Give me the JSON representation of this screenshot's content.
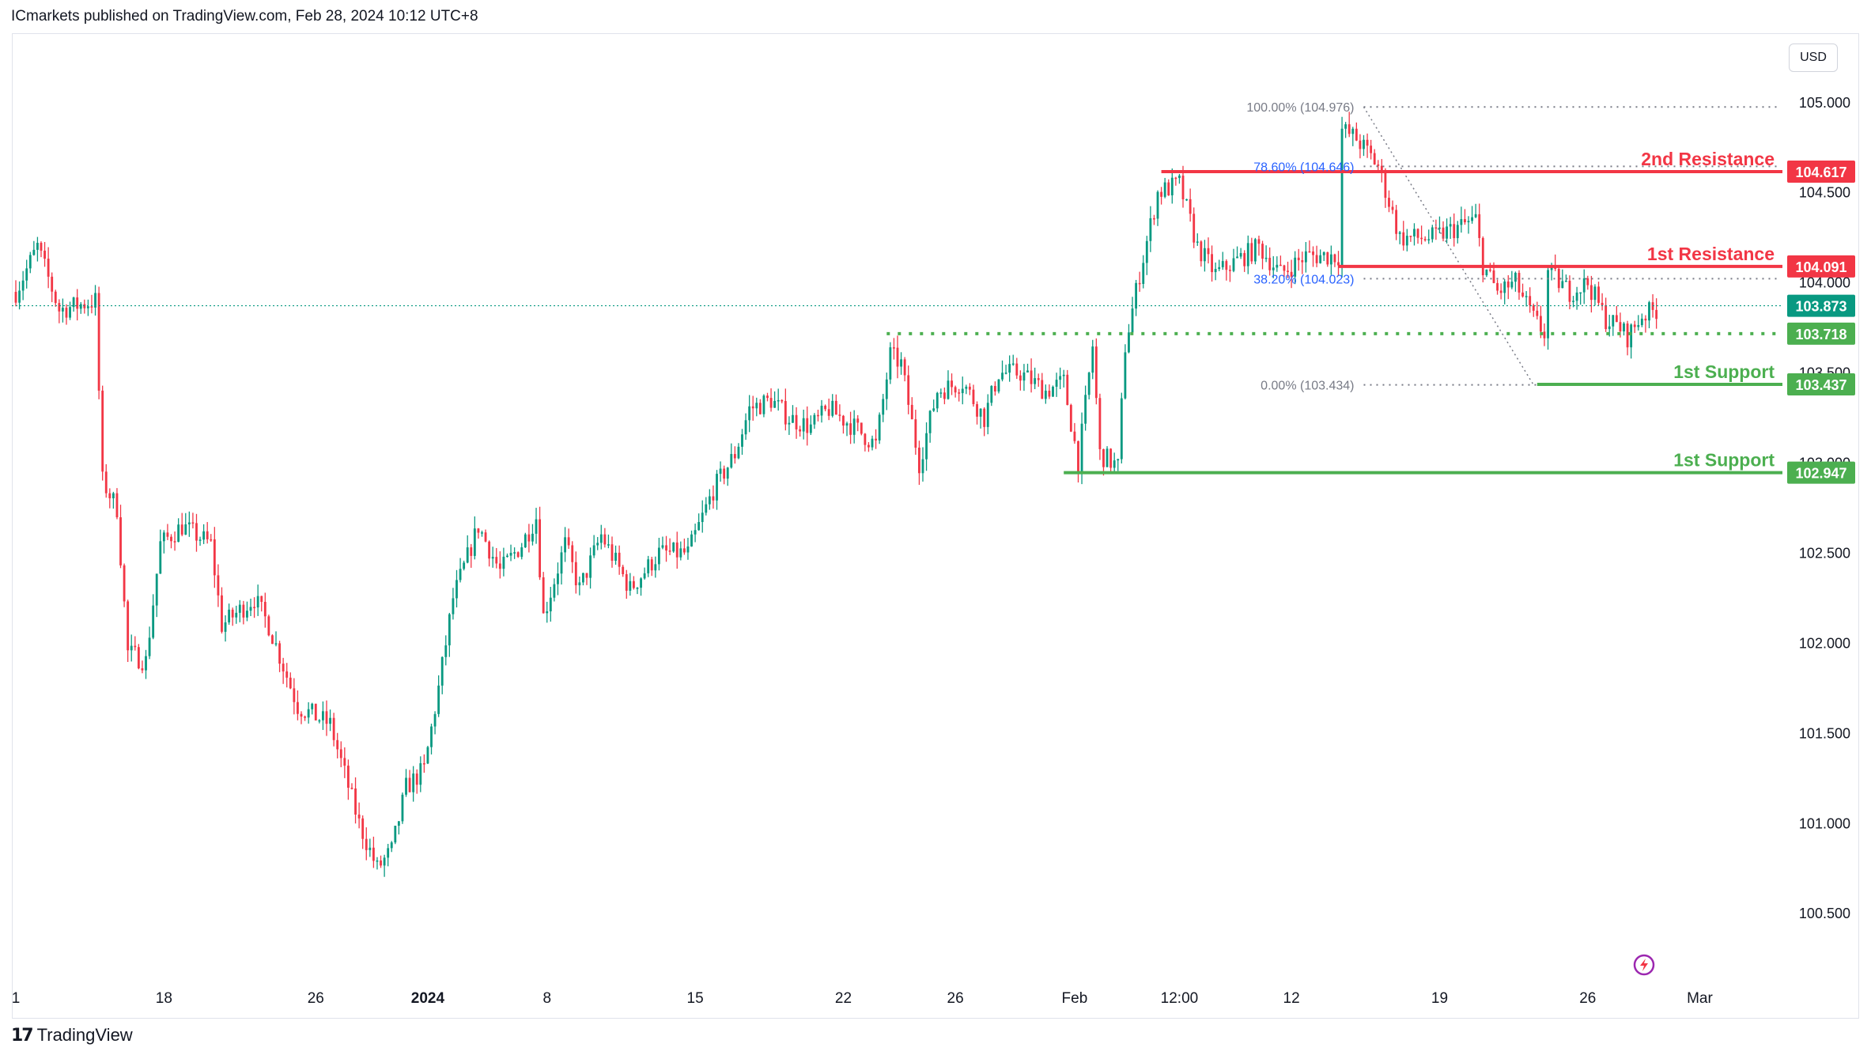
{
  "header": {
    "publisher_text": "ICmarkets published on TradingView.com, Feb 28, 2024 10:12 UTC+8"
  },
  "toolbar": {
    "currency": "USD"
  },
  "footer": {
    "brand": "TradingView"
  },
  "colors": {
    "up": "#089981",
    "down": "#f23645",
    "support": "#4caf50",
    "resistance": "#f23645",
    "fib": "#787b86",
    "fib_blue": "#2962ff"
  },
  "chart_data": {
    "type": "candlestick",
    "title": "",
    "xlabel": "",
    "ylabel": "",
    "ylim": [
      100.15,
      105.35
    ],
    "y_ticks": [
      {
        "value": 105.0,
        "label": "105.000"
      },
      {
        "value": 104.5,
        "label": "104.500"
      },
      {
        "value": 104.0,
        "label": "104.000"
      },
      {
        "value": 103.5,
        "label": "103.500"
      },
      {
        "value": 103.0,
        "label": "103.000"
      },
      {
        "value": 102.5,
        "label": "102.500"
      },
      {
        "value": 102.0,
        "label": "102.000"
      },
      {
        "value": 101.5,
        "label": "101.500"
      },
      {
        "value": 101.0,
        "label": "101.000"
      },
      {
        "value": 100.5,
        "label": "100.500"
      }
    ],
    "x_ticks": [
      {
        "bar": 0,
        "label": "1"
      },
      {
        "bar": 41,
        "label": "18"
      },
      {
        "bar": 83,
        "label": "26"
      },
      {
        "bar": 114,
        "label": "2024",
        "bold": true
      },
      {
        "bar": 147,
        "label": "8"
      },
      {
        "bar": 188,
        "label": "15"
      },
      {
        "bar": 229,
        "label": "22"
      },
      {
        "bar": 260,
        "label": "26"
      },
      {
        "bar": 293,
        "label": "Feb"
      },
      {
        "bar": 322,
        "label": "12:00"
      },
      {
        "bar": 353,
        "label": "12"
      },
      {
        "bar": 394,
        "label": "19"
      },
      {
        "bar": 435,
        "label": "26"
      },
      {
        "bar": 466,
        "label": "Mar"
      }
    ],
    "bar_count": 488,
    "price_waypoints": [
      [
        0,
        103.95
      ],
      [
        6,
        104.2
      ],
      [
        12,
        103.85
      ],
      [
        22,
        103.9
      ],
      [
        24,
        102.9
      ],
      [
        28,
        102.75
      ],
      [
        31,
        101.95
      ],
      [
        36,
        101.9
      ],
      [
        40,
        102.55
      ],
      [
        46,
        102.65
      ],
      [
        54,
        102.55
      ],
      [
        57,
        102.1
      ],
      [
        66,
        102.25
      ],
      [
        70,
        102.1
      ],
      [
        78,
        101.65
      ],
      [
        87,
        101.55
      ],
      [
        95,
        101.0
      ],
      [
        100,
        100.75
      ],
      [
        104,
        100.85
      ],
      [
        108,
        101.2
      ],
      [
        113,
        101.3
      ],
      [
        117,
        101.75
      ],
      [
        121,
        102.25
      ],
      [
        128,
        102.65
      ],
      [
        134,
        102.4
      ],
      [
        140,
        102.55
      ],
      [
        144,
        102.7
      ],
      [
        146,
        102.15
      ],
      [
        152,
        102.55
      ],
      [
        156,
        102.3
      ],
      [
        162,
        102.6
      ],
      [
        170,
        102.3
      ],
      [
        178,
        102.5
      ],
      [
        186,
        102.5
      ],
      [
        193,
        102.85
      ],
      [
        199,
        103.05
      ],
      [
        203,
        103.3
      ],
      [
        209,
        103.35
      ],
      [
        214,
        103.25
      ],
      [
        220,
        103.2
      ],
      [
        225,
        103.3
      ],
      [
        232,
        103.2
      ],
      [
        238,
        103.1
      ],
      [
        242,
        103.6
      ],
      [
        245,
        103.55
      ],
      [
        250,
        103.0
      ],
      [
        255,
        103.4
      ],
      [
        262,
        103.45
      ],
      [
        268,
        103.25
      ],
      [
        272,
        103.5
      ],
      [
        278,
        103.5
      ],
      [
        285,
        103.4
      ],
      [
        290,
        103.45
      ],
      [
        294,
        103.0
      ],
      [
        298,
        103.65
      ],
      [
        300,
        103.05
      ],
      [
        305,
        102.98
      ],
      [
        307,
        103.65
      ],
      [
        311,
        104.05
      ],
      [
        316,
        104.5
      ],
      [
        322,
        104.55
      ],
      [
        327,
        104.2
      ],
      [
        332,
        104.05
      ],
      [
        336,
        104.1
      ],
      [
        344,
        104.2
      ],
      [
        350,
        104.05
      ],
      [
        357,
        104.15
      ],
      [
        363,
        104.15
      ],
      [
        366,
        104.15
      ],
      [
        367,
        104.85
      ],
      [
        371,
        104.8
      ],
      [
        377,
        104.65
      ],
      [
        383,
        104.25
      ],
      [
        392,
        104.25
      ],
      [
        398,
        104.3
      ],
      [
        404,
        104.35
      ],
      [
        406,
        104.1
      ],
      [
        410,
        103.95
      ],
      [
        415,
        104.0
      ],
      [
        420,
        103.8
      ],
      [
        423,
        103.72
      ],
      [
        424,
        104.06
      ],
      [
        430,
        103.95
      ],
      [
        435,
        104.0
      ],
      [
        440,
        103.8
      ],
      [
        444,
        103.75
      ],
      [
        446,
        103.7
      ],
      [
        450,
        103.82
      ],
      [
        454,
        103.85
      ]
    ],
    "current_price": {
      "value": 103.873,
      "label": "103.873"
    },
    "levels": [
      {
        "name": "2nd Resistance",
        "value": 104.617,
        "label": "104.617",
        "kind": "resistance",
        "start_bar": 317
      },
      {
        "name": "1st Resistance",
        "value": 104.091,
        "label": "104.091",
        "kind": "resistance",
        "start_bar": 366
      },
      {
        "name": "",
        "value": 103.718,
        "label": "103.718",
        "kind": "support-dotted",
        "start_bar": 241
      },
      {
        "name": "1st Support",
        "value": 103.437,
        "label": "103.437",
        "kind": "support",
        "start_bar": 421
      },
      {
        "name": "1st Support",
        "value": 102.947,
        "label": "102.947",
        "kind": "support",
        "start_bar": 290
      }
    ],
    "fibonacci": [
      {
        "label": "100.00% (104.976)",
        "value": 104.976,
        "blue": false
      },
      {
        "label": "78.60% (104.646)",
        "value": 104.646,
        "blue": true
      },
      {
        "label": "38.20% (104.023)",
        "value": 104.023,
        "blue": true
      },
      {
        "label": "0.00% (103.434)",
        "value": 103.434,
        "blue": false
      }
    ],
    "fib_trend": {
      "from_bar": 373,
      "from_value": 104.976,
      "to_bar": 420,
      "to_value": 103.434
    }
  }
}
